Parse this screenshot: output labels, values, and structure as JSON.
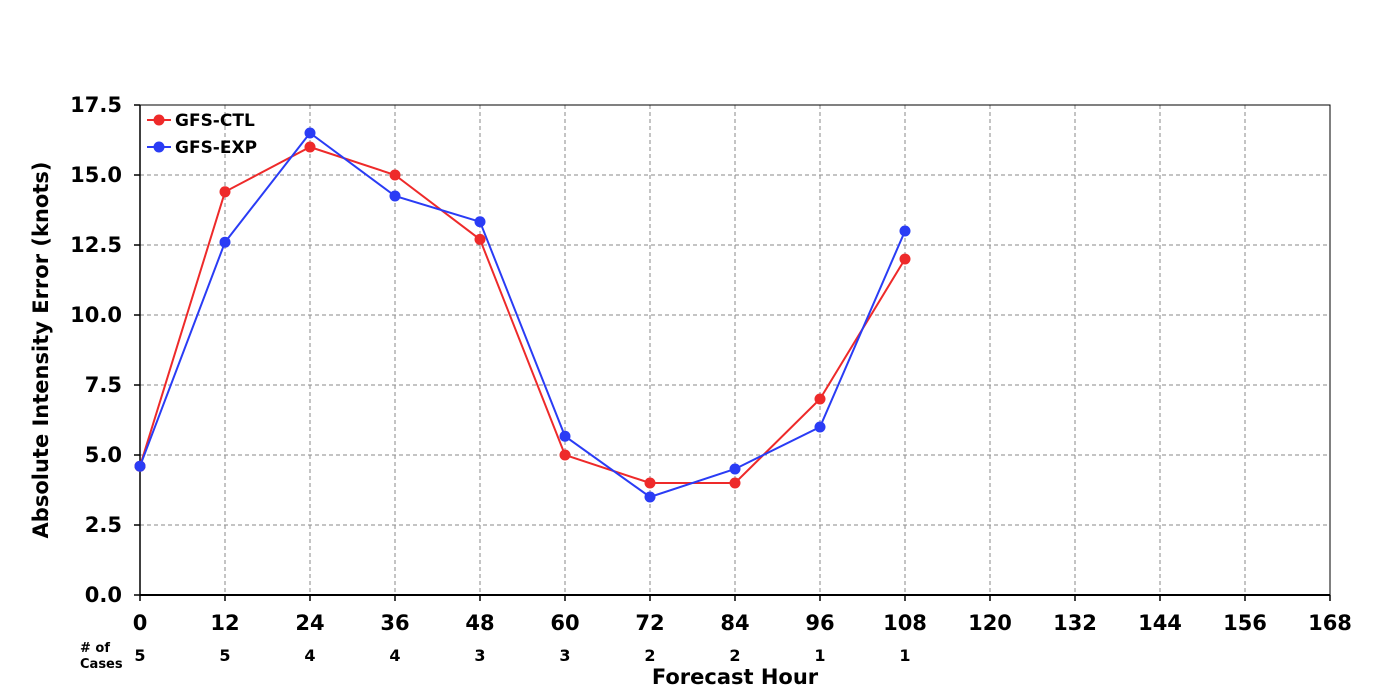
{
  "chart_data": {
    "type": "line",
    "title": "",
    "xlabel": "Forecast Hour",
    "ylabel": "Absolute Intensity Error (knots)",
    "xlim": [
      0,
      168
    ],
    "ylim": [
      0,
      17.5
    ],
    "x_ticks": [
      "0",
      "12",
      "24",
      "36",
      "48",
      "60",
      "72",
      "84",
      "96",
      "108",
      "120",
      "132",
      "144",
      "156",
      "168"
    ],
    "y_ticks": [
      "0.0",
      "2.5",
      "5.0",
      "7.5",
      "10.0",
      "12.5",
      "15.0",
      "17.5"
    ],
    "grid": true,
    "legend_position": "top-left",
    "series": [
      {
        "name": "GFS-CTL",
        "color": "#ee2a2a",
        "x": [
          0,
          12,
          24,
          36,
          48,
          60,
          72,
          84,
          96,
          108
        ],
        "values": [
          4.6,
          14.4,
          16.0,
          15.0,
          12.7,
          5.0,
          4.0,
          4.0,
          7.0,
          12.0
        ]
      },
      {
        "name": "GFS-EXP",
        "color": "#2a3cf5",
        "x": [
          0,
          12,
          24,
          36,
          48,
          60,
          72,
          84,
          96,
          108
        ],
        "values": [
          4.6,
          12.6,
          16.5,
          14.25,
          13.33,
          5.67,
          3.5,
          4.5,
          6.0,
          13.0
        ]
      }
    ],
    "cases": {
      "label_line1": "# of",
      "label_line2": "Cases",
      "x": [
        0,
        12,
        24,
        36,
        48,
        60,
        72,
        84,
        96,
        108
      ],
      "values": [
        "5",
        "5",
        "4",
        "4",
        "3",
        "3",
        "2",
        "2",
        "1",
        "1"
      ]
    }
  }
}
